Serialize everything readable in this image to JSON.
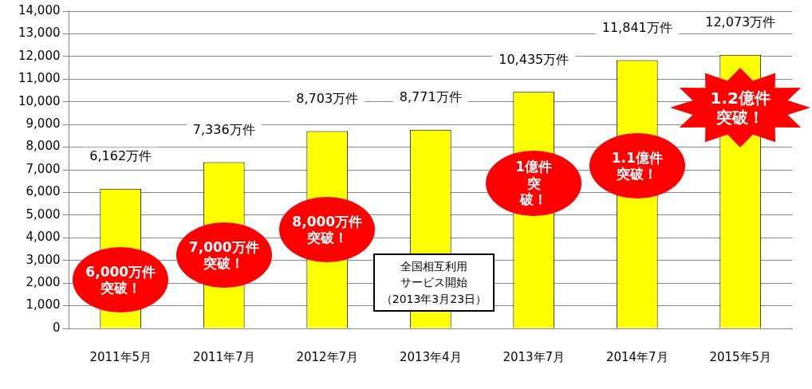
{
  "chart_data": {
    "type": "bar",
    "categories": [
      "2011年5月",
      "2011年7月",
      "2012年7月",
      "2013年4月",
      "2013年7月",
      "2014年7月",
      "2015年5月"
    ],
    "values": [
      6162,
      7336,
      8703,
      8771,
      10435,
      11841,
      12073
    ],
    "value_labels": [
      "6,162万件",
      "7,336万件",
      "8,703万件",
      "8,771万件",
      "10,435万件",
      "11,841万件",
      "12,073万件"
    ],
    "color": "#ffff00",
    "ylim": [
      0,
      14000
    ],
    "yticks": [
      0,
      {
        "value": 1000,
        "label": "1,000"
      },
      {
        "value": 2000,
        "label": "2,000"
      },
      {
        "value": 3000,
        "label": "3,000"
      },
      {
        "value": 4000,
        "label": "4,000"
      },
      {
        "value": 5000,
        "label": "5,000"
      },
      {
        "value": 6000,
        "label": "6,000"
      },
      {
        "value": 7000,
        "label": "7,000"
      },
      {
        "value": 8000,
        "label": "8,000"
      },
      {
        "value": 9000,
        "label": "9,000"
      },
      {
        "value": 10000,
        "label": "10,000"
      },
      {
        "value": 11000,
        "label": "11,000"
      },
      {
        "value": 12000,
        "label": "12,000"
      },
      {
        "value": 13000,
        "label": "13,000"
      },
      {
        "value": 14000,
        "label": "14,000"
      }
    ],
    "grid": "y",
    "legend": false,
    "annotations": [
      "6,000万件突破！",
      "7,000万件突破！",
      "8,000万件突破！",
      "全国相互利用サービス開始",
      "（2013年3月23日）",
      "1億件突破！",
      "1.1億件突破！",
      "1.2億件突破！"
    ]
  }
}
